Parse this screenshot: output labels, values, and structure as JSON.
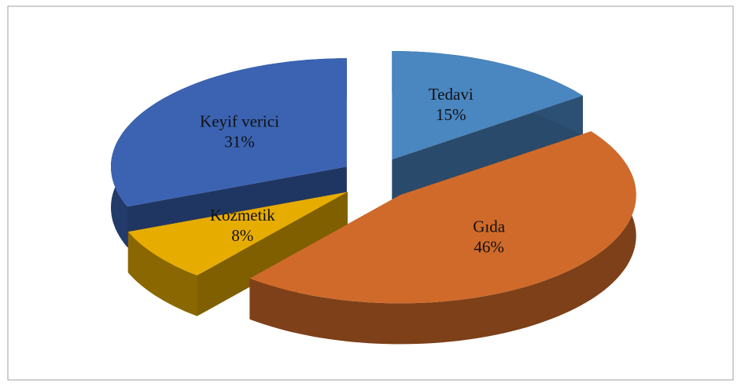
{
  "chart_data": {
    "type": "pie",
    "categories": [
      "Tedavi",
      "Gıda",
      "Kozmetik",
      "Keyif verici"
    ],
    "values": [
      15,
      46,
      8,
      31
    ],
    "value_labels": [
      "15%",
      "46%",
      "8%",
      "31%"
    ],
    "colors": [
      "#4a86c0",
      "#d06a2a",
      "#e6ac00",
      "#3b63b2"
    ]
  }
}
